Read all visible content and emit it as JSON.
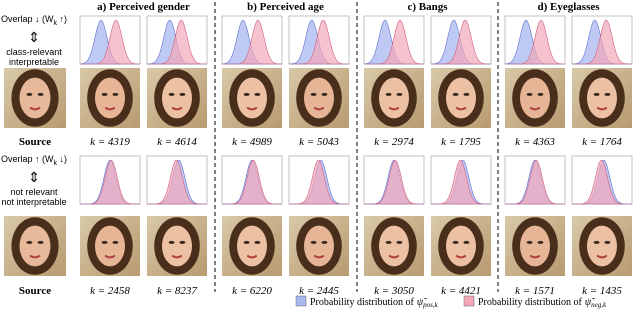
{
  "columns": [
    "a) Perceived gender",
    "b) Perceived age",
    "c) Bangs",
    "d) Eyeglasses"
  ],
  "rows": [
    {
      "overlap": [
        "Overlap ↓ (W",
        "k",
        " ↑)"
      ],
      "notes": [
        "class-relevant",
        "interpretable"
      ],
      "source": "Source",
      "k": [
        "k = 4319",
        "k = 4614",
        "k = 4989",
        "k = 5043",
        "k = 2974",
        "k = 1795",
        "k = 4363",
        "k = 1764"
      ]
    },
    {
      "overlap": [
        "Overlap ↑ (W",
        "k",
        " ↓)"
      ],
      "notes": [
        "not relevant",
        "not interpretable"
      ],
      "source": "Source",
      "k": [
        "k = 2458",
        "k = 8237",
        "k = 6220",
        "k = 2445",
        "k = 3050",
        "k = 4421",
        "k = 1571",
        "k = 1435"
      ]
    }
  ],
  "legend": [
    {
      "text": "Probability distribution of",
      "symbol": "ψ̃",
      "sub": "pos,k",
      "color": "#aab8f0"
    },
    {
      "text": "Probability distribution of",
      "symbol": "ψ̃",
      "sub": "neg,k",
      "color": "#f2a8b8"
    }
  ]
}
